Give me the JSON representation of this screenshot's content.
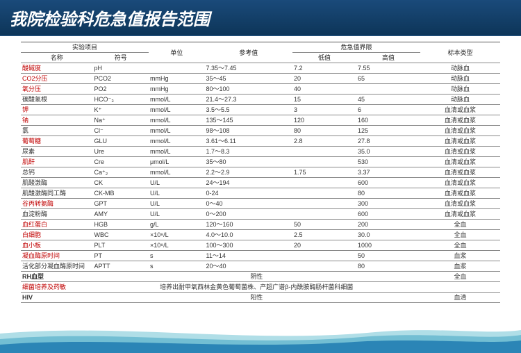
{
  "title": "我院检验科危急值报告范围",
  "header": {
    "group_project": "实验项目",
    "col_name": "名称",
    "col_symbol": "符号",
    "col_unit": "单位",
    "col_ref": "参考值",
    "group_crit": "危急值界限",
    "col_low": "低值",
    "col_high": "高值",
    "col_specimen": "标本类型"
  },
  "rows": [
    {
      "name": "酸碱度",
      "name_red": true,
      "symbol": "pH",
      "unit": "",
      "ref": "7.35～7.45",
      "low": "7.2",
      "high": "7.55",
      "spec": "动脉血"
    },
    {
      "name": "CO2分压",
      "name_red": true,
      "symbol": "PCO2",
      "unit": "mmHg",
      "ref": "35～45",
      "low": "20",
      "high": "65",
      "spec": "动脉血"
    },
    {
      "name": "氧分压",
      "name_red": true,
      "symbol": "PO2",
      "unit": "mmHg",
      "ref": "80～100",
      "low": "40",
      "high": "",
      "spec": "动脉血"
    },
    {
      "name": "碳酸氢根",
      "symbol": "HCO⁻₃",
      "unit": "mmol/L",
      "ref": "21.4～27.3",
      "low": "15",
      "high": "45",
      "spec": "动脉血"
    },
    {
      "name": "钾",
      "name_red": true,
      "symbol": "K⁺",
      "unit": "mmol/L",
      "ref": "3.5～5.5",
      "low": "3",
      "high": "6",
      "spec": "血清或血浆"
    },
    {
      "name": "钠",
      "name_red": true,
      "symbol": "Na⁺",
      "unit": "mmol/L",
      "ref": "135～145",
      "low": "120",
      "high": "160",
      "spec": "血清或血浆"
    },
    {
      "name": "氯",
      "symbol": "Cl⁻",
      "unit": "mmol/L",
      "ref": "98～108",
      "low": "80",
      "high": "125",
      "spec": "血清或血浆"
    },
    {
      "name": "葡萄糖",
      "name_red": true,
      "symbol": "GLU",
      "unit": "mmol/L",
      "ref": "3.61～6.11",
      "low": "2.8",
      "high": "27.8",
      "spec": "血清或血浆"
    },
    {
      "name": "尿素",
      "symbol": "Ure",
      "unit": "mmol/L",
      "ref": "1.7～8.3",
      "low": "",
      "high": "35.0",
      "spec": "血清或血浆"
    },
    {
      "name": "肌酐",
      "name_red": true,
      "symbol": "Cre",
      "unit": "μmol/L",
      "ref": "35～80",
      "low": "",
      "high": "530",
      "spec": "血清或血浆"
    },
    {
      "name": "总钙",
      "symbol": "Ca⁺₂",
      "unit": "mmol/L",
      "ref": "2.2～2.9",
      "low": "1.75",
      "high": "3.37",
      "spec": "血清或血浆"
    },
    {
      "name": "肌酸激酶",
      "symbol": "CK",
      "unit": "U/L",
      "ref": "24～194",
      "low": "",
      "high": "600",
      "spec": "血清或血浆"
    },
    {
      "name": "肌酸激酶同工酶",
      "symbol": "CK-MB",
      "unit": "U/L",
      "ref": "0-24",
      "low": "",
      "high": "80",
      "spec": "血清或血浆"
    },
    {
      "name": "谷丙转氨酶",
      "name_red": true,
      "symbol": "GPT",
      "unit": "U/L",
      "ref": "0～40",
      "low": "",
      "high": "300",
      "spec": "血清或血浆"
    },
    {
      "name": "血淀粉酶",
      "symbol": "AMY",
      "unit": "U/L",
      "ref": "0～200",
      "low": "",
      "high": "600",
      "spec": "血清或血浆"
    },
    {
      "name": "血红蛋白",
      "name_red": true,
      "symbol": "HGB",
      "unit": "g/L",
      "ref": "120～160",
      "low": "50",
      "high": "200",
      "spec": "全血"
    },
    {
      "name": "白细胞",
      "name_red": true,
      "symbol": "WBC",
      "unit": "×10⁹/L",
      "ref": "4.0～10.0",
      "low": "2.5",
      "high": "30.0",
      "spec": "全血"
    },
    {
      "name": "血小板",
      "name_red": true,
      "symbol": "PLT",
      "unit": "×10⁹/L",
      "ref": "100～300",
      "low": "20",
      "high": "1000",
      "spec": "全血"
    },
    {
      "name": "凝血酶原时间",
      "name_red": true,
      "symbol": "PT",
      "unit": "s",
      "ref": "11～14",
      "low": "",
      "high": "50",
      "spec": "血浆"
    },
    {
      "name": "活化部分凝血酶原时间",
      "symbol": "APTT",
      "unit": "s",
      "ref": "20～40",
      "low": "",
      "high": "80",
      "spec": "血浆"
    }
  ],
  "special_rows": [
    {
      "name": "RH血型",
      "name_bold": true,
      "merged": "阴性",
      "spec": "全血"
    },
    {
      "name": "细菌培养及药敏",
      "name_red": true,
      "merged": "培养出耐甲氧西林金黄色葡萄菌株、产超广谱β-内酰胺酶肠杆菌科细菌",
      "spec": ""
    },
    {
      "name": "HIV",
      "name_bold": true,
      "merged": "阳性",
      "spec": "血清"
    }
  ],
  "wave_colors": {
    "top": "#6fc2d4",
    "mid": "#4aa8c7",
    "bot": "#1e7bb0"
  }
}
